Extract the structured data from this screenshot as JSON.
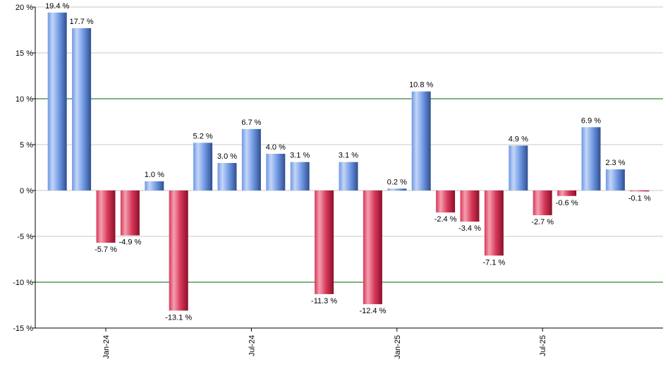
{
  "chart_data": {
    "type": "bar",
    "categories": [
      null,
      null,
      "Jan-24",
      null,
      null,
      null,
      null,
      null,
      "Jul-24",
      null,
      null,
      null,
      null,
      null,
      "Jan-25",
      null,
      null,
      null,
      null,
      null,
      "Jul-25",
      null,
      null,
      null,
      null
    ],
    "values": [
      19.4,
      17.7,
      -5.7,
      -4.9,
      1.0,
      -13.1,
      5.2,
      3.0,
      6.7,
      4.0,
      3.1,
      -11.3,
      3.1,
      -12.4,
      0.2,
      10.8,
      -2.4,
      -3.4,
      -7.1,
      4.9,
      -2.7,
      -0.6,
      6.9,
      2.3,
      -0.1
    ],
    "value_labels": [
      "19.4 %",
      "17.7 %",
      "-5.7 %",
      "-4.9 %",
      "1.0 %",
      "-13.1 %",
      "5.2 %",
      "3.0 %",
      "6.7 %",
      "4.0 %",
      "3.1 %",
      "-11.3 %",
      "3.1 %",
      "-12.4 %",
      "0.2 %",
      "10.8 %",
      "-2.4 %",
      "-3.4 %",
      "-7.1 %",
      "4.9 %",
      "-2.7 %",
      "-0.6 %",
      "6.9 %",
      "2.3 %",
      "-0.1 %"
    ],
    "positive_colors": [
      "#c4d6f7",
      "#6f98e4",
      "#2f4f8f"
    ],
    "negative_colors": [
      "#f4a0b0",
      "#d8385a",
      "#8a1028"
    ],
    "ylim": [
      -15,
      20
    ],
    "yticks": [
      {
        "value": -15,
        "label": "-15 %"
      },
      {
        "value": -10,
        "label": "-10 %"
      },
      {
        "value": -5,
        "label": "-5 %"
      },
      {
        "value": 0,
        "label": "0 %"
      },
      {
        "value": 5,
        "label": "5 %"
      },
      {
        "value": 10,
        "label": "10 %"
      },
      {
        "value": 15,
        "label": "15 %"
      },
      {
        "value": 20,
        "label": "20 %"
      }
    ],
    "grid": true,
    "grid_color": "#c8c8c8",
    "reference_lines": [
      10,
      -10
    ],
    "reference_color": "#006400"
  }
}
